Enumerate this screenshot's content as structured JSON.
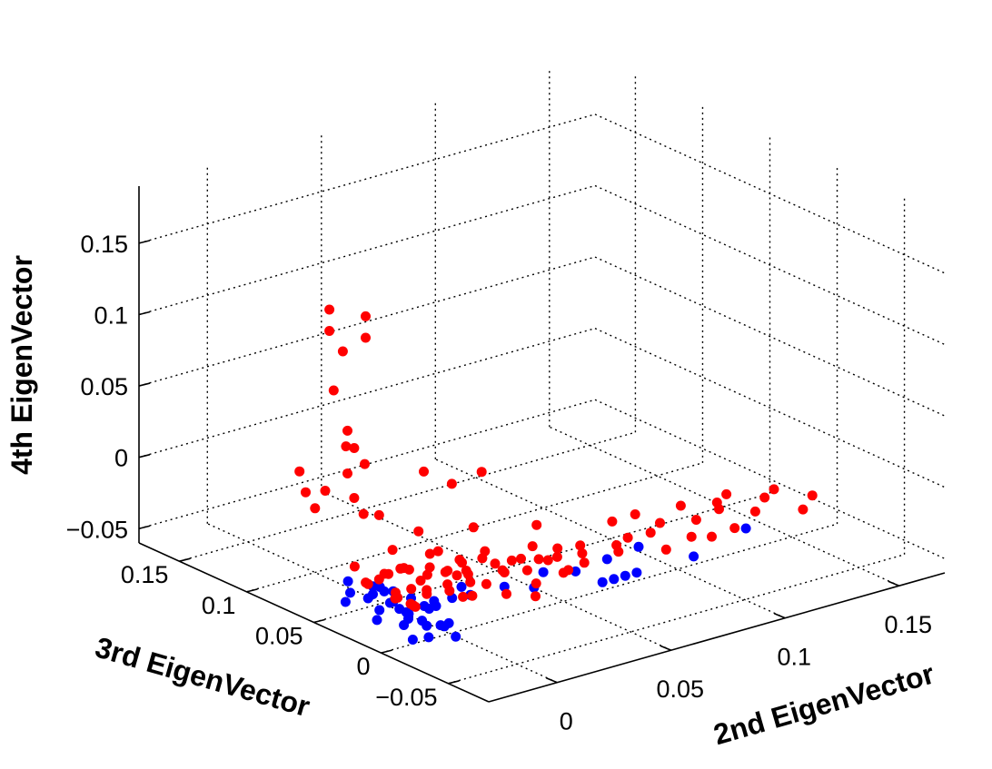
{
  "chart_data": {
    "type": "scatter",
    "title": "",
    "xlabel": "2nd EigenVector",
    "ylabel": "3rd EigenVector",
    "zlabel": "4th EigenVector",
    "xlim": [
      -0.03,
      0.17
    ],
    "ylim": [
      -0.08,
      0.18
    ],
    "zlim": [
      -0.06,
      0.19
    ],
    "xticks": [
      0,
      0.05,
      0.1,
      0.15
    ],
    "yticks": [
      -0.05,
      0,
      0.05,
      0.1,
      0.15
    ],
    "zticks": [
      -0.05,
      0,
      0.05,
      0.1,
      0.15
    ],
    "xtick_labels": [
      "0",
      "0.05",
      "0.1",
      "0.15"
    ],
    "ytick_labels": [
      "−0.05",
      "0",
      "0.05",
      "0.1",
      "0.15"
    ],
    "ztick_labels": [
      "−0.05",
      "0",
      "0.05",
      "0.1",
      "0.15"
    ],
    "grid": true,
    "series": [
      {
        "color": "#0000ff",
        "points": [
          [
            -0.022,
            -0.01,
            -0.05
          ],
          [
            -0.02,
            0.0,
            -0.045
          ],
          [
            -0.018,
            -0.015,
            -0.048
          ],
          [
            -0.016,
            0.005,
            -0.04
          ],
          [
            -0.02,
            0.02,
            -0.05
          ],
          [
            -0.015,
            -0.005,
            -0.042
          ],
          [
            -0.012,
            0.01,
            -0.045
          ],
          [
            -0.018,
            0.03,
            -0.04
          ],
          [
            -0.01,
            0.0,
            -0.05
          ],
          [
            -0.014,
            -0.02,
            -0.04
          ],
          [
            -0.022,
            0.04,
            -0.045
          ],
          [
            -0.008,
            0.015,
            -0.038
          ],
          [
            -0.019,
            0.012,
            -0.035
          ],
          [
            -0.011,
            -0.012,
            -0.044
          ],
          [
            -0.016,
            0.025,
            -0.047
          ],
          [
            -0.006,
            0.005,
            -0.042
          ],
          [
            -0.013,
            0.035,
            -0.036
          ],
          [
            -0.021,
            -0.005,
            -0.038
          ],
          [
            -0.009,
            0.022,
            -0.048
          ],
          [
            -0.017,
            0.045,
            -0.043
          ],
          [
            -0.012,
            -0.025,
            -0.046
          ],
          [
            -0.004,
            0.012,
            -0.044
          ],
          [
            -0.015,
            0.05,
            -0.038
          ],
          [
            -0.02,
            0.008,
            -0.032
          ],
          [
            -0.007,
            0.03,
            -0.04
          ],
          [
            -0.01,
            0.04,
            -0.045
          ],
          [
            -0.005,
            -0.008,
            -0.047
          ],
          [
            -0.018,
            0.018,
            -0.03
          ],
          [
            -0.014,
            0.028,
            -0.033
          ],
          [
            0.0,
            0.01,
            -0.045
          ],
          [
            0.005,
            0.02,
            -0.048
          ],
          [
            0.01,
            0.015,
            -0.046
          ],
          [
            0.015,
            0.01,
            -0.044
          ],
          [
            0.02,
            0.025,
            -0.047
          ],
          [
            0.03,
            0.01,
            -0.045
          ],
          [
            0.04,
            0.005,
            -0.048
          ],
          [
            0.05,
            0.015,
            -0.046
          ],
          [
            0.06,
            0.008,
            -0.047
          ],
          [
            0.075,
            0.01,
            -0.046
          ],
          [
            0.09,
            0.012,
            -0.045
          ],
          [
            0.06,
            -0.012,
            -0.046
          ],
          [
            0.065,
            -0.012,
            -0.046
          ],
          [
            0.07,
            -0.012,
            -0.046
          ],
          [
            0.075,
            -0.012,
            -0.046
          ],
          [
            0.1,
            -0.012,
            -0.046
          ],
          [
            0.13,
            0.0,
            -0.045
          ]
        ]
      },
      {
        "color": "#ff0000",
        "points": [
          [
            -0.035,
            0.03,
            0.17
          ],
          [
            -0.025,
            0.02,
            0.165
          ],
          [
            -0.035,
            0.03,
            0.155
          ],
          [
            -0.025,
            0.02,
            0.15
          ],
          [
            -0.035,
            0.02,
            0.145
          ],
          [
            -0.03,
            0.025,
            0.085
          ],
          [
            -0.03,
            0.02,
            0.075
          ],
          [
            -0.03,
            0.025,
            0.055
          ],
          [
            -0.03,
            0.02,
            0.04
          ],
          [
            -0.025,
            0.05,
            0.03
          ],
          [
            -0.025,
            0.01,
            0.03
          ],
          [
            -0.02,
            0.03,
            0.02
          ],
          [
            -0.025,
            0.0,
            0.01
          ],
          [
            -0.01,
            0.09,
            0.005
          ],
          [
            0.02,
            0.01,
            0.04
          ],
          [
            -0.01,
            0.06,
            0.05
          ],
          [
            0.01,
            0.08,
            0.02
          ],
          [
            0.005,
            0.12,
            0.0
          ],
          [
            0.03,
            0.07,
            0.01
          ],
          [
            -0.005,
            0.0,
            0.0
          ],
          [
            0.02,
            0.12,
            0.05
          ],
          [
            0.0,
            0.1,
            -0.015
          ],
          [
            0.05,
            0.02,
            -0.015
          ],
          [
            -0.02,
            0.0,
            -0.005
          ],
          [
            -0.025,
            0.01,
            -0.015
          ],
          [
            0.04,
            0.05,
            -0.025
          ],
          [
            0.06,
            0.1,
            -0.025
          ],
          [
            0.02,
            0.0,
            -0.02
          ],
          [
            0.01,
            0.04,
            -0.01
          ],
          [
            0.02,
            -0.03,
            -0.03
          ],
          [
            -0.015,
            0.02,
            -0.02
          ],
          [
            -0.01,
            0.0,
            -0.025
          ],
          [
            0.0,
            0.03,
            -0.028
          ],
          [
            0.005,
            0.01,
            -0.032
          ],
          [
            -0.005,
            0.02,
            -0.035
          ],
          [
            0.01,
            0.02,
            -0.03
          ],
          [
            0.015,
            0.01,
            -0.035
          ],
          [
            0.005,
            0.03,
            -0.038
          ],
          [
            -0.005,
            0.04,
            -0.033
          ],
          [
            0.0,
            0.0,
            -0.03
          ],
          [
            0.01,
            0.0,
            -0.038
          ],
          [
            0.02,
            0.02,
            -0.036
          ],
          [
            0.025,
            0.03,
            -0.04
          ],
          [
            0.03,
            0.01,
            -0.035
          ],
          [
            0.035,
            0.02,
            -0.04
          ],
          [
            0.04,
            0.01,
            -0.038
          ],
          [
            0.045,
            0.03,
            -0.042
          ],
          [
            0.05,
            0.0,
            -0.04
          ],
          [
            0.055,
            0.02,
            -0.042
          ],
          [
            0.06,
            0.04,
            -0.043
          ],
          [
            0.065,
            0.01,
            -0.044
          ],
          [
            0.07,
            0.02,
            -0.044
          ],
          [
            0.075,
            0.03,
            -0.045
          ],
          [
            0.08,
            0.01,
            -0.043
          ],
          [
            0.085,
            0.02,
            -0.045
          ],
          [
            0.09,
            0.02,
            -0.042
          ],
          [
            0.095,
            0.0,
            -0.044
          ],
          [
            0.1,
            0.02,
            -0.043
          ],
          [
            0.11,
            0.03,
            -0.045
          ],
          [
            0.115,
            0.0,
            -0.044
          ],
          [
            0.12,
            0.02,
            -0.043
          ],
          [
            0.13,
            0.02,
            -0.04
          ],
          [
            0.14,
            0.01,
            -0.042
          ],
          [
            0.15,
            0.02,
            -0.041
          ],
          [
            0.155,
            0.0,
            -0.043
          ],
          [
            0.165,
            0.01,
            -0.042
          ],
          [
            -0.01,
            0.01,
            -0.04
          ],
          [
            -0.015,
            0.015,
            -0.035
          ],
          [
            -0.012,
            0.005,
            -0.038
          ],
          [
            -0.008,
            0.025,
            -0.042
          ],
          [
            -0.018,
            0.03,
            -0.03
          ],
          [
            -0.02,
            -0.005,
            -0.028
          ],
          [
            0.0,
            -0.01,
            -0.03
          ],
          [
            0.005,
            0.045,
            -0.036
          ],
          [
            0.012,
            0.035,
            -0.034
          ],
          [
            0.018,
            0.025,
            -0.038
          ],
          [
            0.022,
            -0.005,
            -0.04
          ],
          [
            0.028,
            0.04,
            -0.038
          ],
          [
            0.032,
            0.045,
            -0.044
          ],
          [
            0.038,
            0.0,
            -0.042
          ],
          [
            0.045,
            0.05,
            -0.044
          ],
          [
            0.052,
            0.035,
            -0.046
          ],
          [
            0.058,
            0.01,
            -0.046
          ],
          [
            0.062,
            0.025,
            -0.045
          ],
          [
            0.068,
            0.035,
            -0.046
          ],
          [
            0.105,
            0.04,
            -0.041
          ],
          [
            0.125,
            0.04,
            -0.044
          ],
          [
            0.135,
            0.03,
            -0.042
          ],
          [
            0.145,
            0.04,
            -0.045
          ],
          [
            0.16,
            0.03,
            -0.044
          ],
          [
            0.092,
            0.035,
            -0.038
          ],
          [
            0.112,
            0.01,
            -0.047
          ],
          [
            0.128,
            0.005,
            -0.046
          ],
          [
            -0.022,
            0.025,
            -0.025
          ],
          [
            -0.018,
            0.04,
            -0.022
          ],
          [
            -0.005,
            0.008,
            -0.02
          ],
          [
            0.008,
            0.015,
            -0.026
          ],
          [
            0.015,
            0.04,
            -0.028
          ],
          [
            0.003,
            0.022,
            -0.043
          ],
          [
            0.025,
            0.015,
            -0.043
          ],
          [
            -0.003,
            0.035,
            -0.045
          ],
          [
            0.035,
            0.035,
            -0.038
          ],
          [
            0.048,
            0.015,
            -0.036
          ]
        ]
      }
    ]
  }
}
